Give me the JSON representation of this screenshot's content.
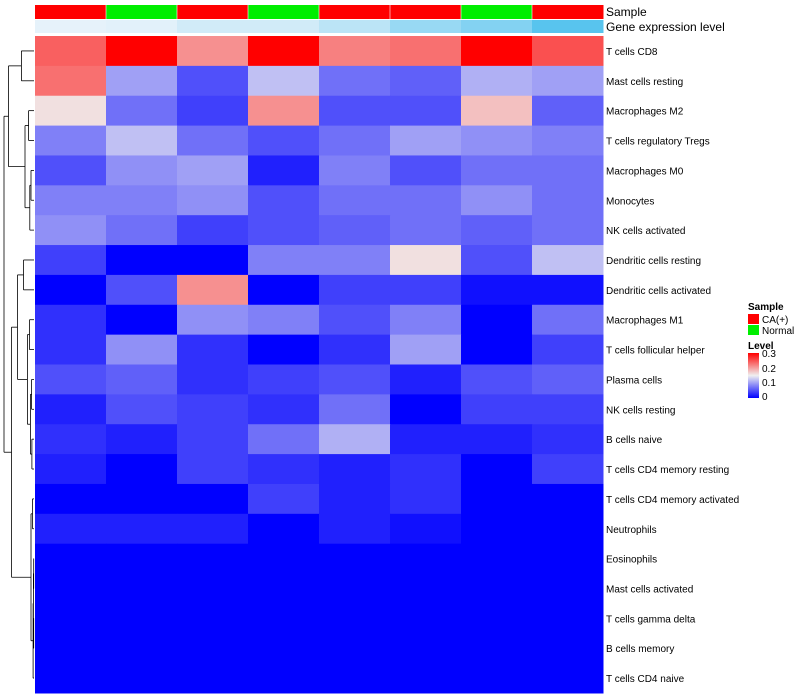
{
  "colors": {
    "ca_plus": "#ff0000",
    "normal": "#00ee00",
    "level_low": "#0000ff",
    "level_mid": "#f0f0f0",
    "level_high": "#ff0000",
    "dendrogram": "#000000"
  },
  "chart_data": {
    "type": "heatmap",
    "title": "",
    "annotation_tracks": [
      "Sample",
      "Gene expression level"
    ],
    "legend": {
      "position": "right",
      "sample_title": "Sample",
      "sample_entries": [
        {
          "label": "CA(+)",
          "color": "#ff0000"
        },
        {
          "label": "Normal",
          "color": "#00ee00"
        }
      ],
      "level_title": "Level",
      "level_ticks": [
        "0.3",
        "0.2",
        "0.1",
        "0"
      ],
      "level_range": [
        0,
        0.3
      ]
    },
    "sample_groups": [
      "CA(+)",
      "Normal",
      "CA(+)",
      "Normal",
      "CA(+)",
      "CA(+)",
      "Normal",
      "CA(+)"
    ],
    "expression_level_track": [
      0,
      0.03,
      0.15,
      0.15,
      0.3,
      0.55,
      0.7,
      1.0
    ],
    "rows": [
      "T cells CD8",
      "Mast cells resting",
      "Macrophages M2",
      "T cells regulatory  Tregs",
      "Macrophages M0",
      "Monocytes",
      "NK cells activated",
      "Dendritic cells resting",
      "Dendritic cells activated",
      "Macrophages M1",
      "T cells follicular helper",
      "Plasma cells",
      "NK cells resting",
      "B cells naive",
      "T cells CD4 memory resting",
      "T cells CD4 memory activated",
      "Neutrophils",
      "Eosinophils",
      "Mast cells activated",
      "T cells gamma delta",
      "B cells memory",
      "T cells CD4 naive"
    ],
    "values": [
      [
        0.24,
        0.3,
        0.21,
        0.3,
        0.22,
        0.23,
        0.3,
        0.25
      ],
      [
        0.23,
        0.1,
        0.05,
        0.12,
        0.07,
        0.06,
        0.11,
        0.1
      ],
      [
        0.16,
        0.07,
        0.04,
        0.21,
        0.05,
        0.05,
        0.18,
        0.06
      ],
      [
        0.08,
        0.12,
        0.07,
        0.05,
        0.07,
        0.1,
        0.09,
        0.08
      ],
      [
        0.05,
        0.09,
        0.1,
        0.02,
        0.08,
        0.05,
        0.07,
        0.07
      ],
      [
        0.08,
        0.08,
        0.09,
        0.05,
        0.07,
        0.07,
        0.09,
        0.07
      ],
      [
        0.09,
        0.07,
        0.04,
        0.05,
        0.06,
        0.07,
        0.06,
        0.07
      ],
      [
        0.04,
        0.0,
        0.0,
        0.08,
        0.08,
        0.16,
        0.05,
        0.12
      ],
      [
        0.0,
        0.05,
        0.21,
        0.0,
        0.04,
        0.04,
        0.01,
        0.01
      ],
      [
        0.03,
        0.0,
        0.09,
        0.08,
        0.05,
        0.08,
        0.0,
        0.07
      ],
      [
        0.03,
        0.09,
        0.03,
        0.0,
        0.03,
        0.1,
        0.0,
        0.04
      ],
      [
        0.05,
        0.06,
        0.03,
        0.04,
        0.05,
        0.02,
        0.05,
        0.06
      ],
      [
        0.02,
        0.05,
        0.04,
        0.03,
        0.07,
        0.0,
        0.04,
        0.04
      ],
      [
        0.03,
        0.02,
        0.04,
        0.07,
        0.11,
        0.02,
        0.02,
        0.03
      ],
      [
        0.02,
        0.0,
        0.04,
        0.03,
        0.02,
        0.03,
        0.0,
        0.04
      ],
      [
        0.0,
        0.0,
        0.0,
        0.04,
        0.02,
        0.03,
        0.0,
        0.0
      ],
      [
        0.02,
        0.02,
        0.02,
        0.0,
        0.02,
        0.01,
        0.0,
        0.0
      ],
      [
        0.0,
        0.0,
        0.0,
        0.0,
        0.0,
        0.0,
        0.0,
        0.0
      ],
      [
        0.0,
        0.0,
        0.0,
        0.0,
        0.0,
        0.0,
        0.0,
        0.0
      ],
      [
        0.0,
        0.0,
        0.0,
        0.0,
        0.0,
        0.0,
        0.0,
        0.0
      ],
      [
        0.0,
        0.0,
        0.0,
        0.0,
        0.0,
        0.0,
        0.0,
        0.0
      ],
      [
        0.0,
        0.0,
        0.0,
        0.0,
        0.0,
        0.0,
        0.0,
        0.0
      ]
    ]
  }
}
